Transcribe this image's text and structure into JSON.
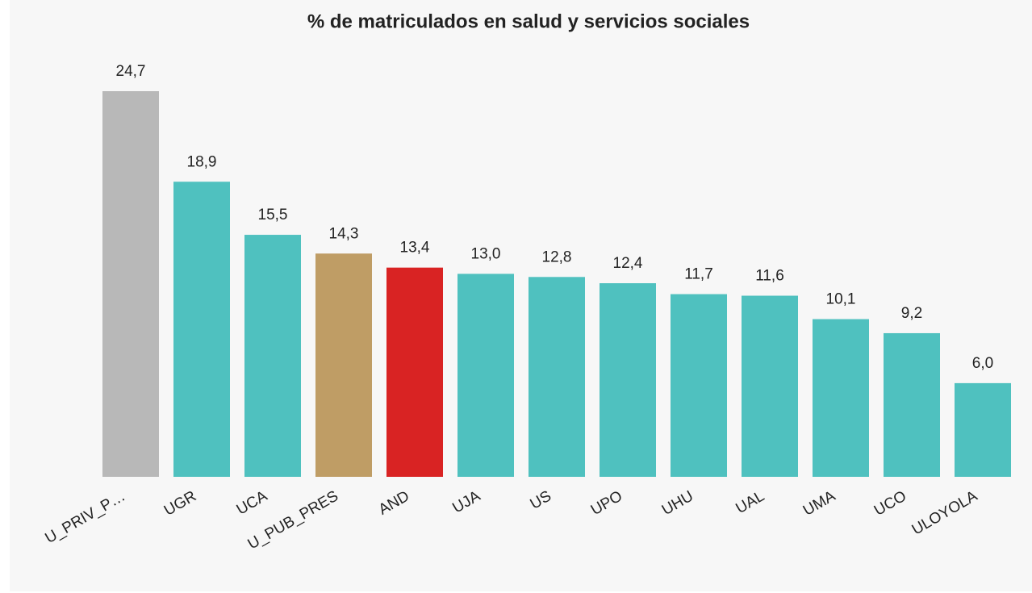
{
  "chart_data": {
    "type": "bar",
    "title": "% de matriculados en salud y servicios sociales",
    "categories": [
      "U_PRIV_P…",
      "UGR",
      "UCA",
      "U_PUB_PRES",
      "AND",
      "UJA",
      "US",
      "UPO",
      "UHU",
      "UAL",
      "UMA",
      "UCO",
      "ULOYOLA"
    ],
    "values": [
      24.7,
      18.9,
      15.5,
      14.3,
      13.4,
      13.0,
      12.8,
      12.4,
      11.7,
      11.6,
      10.1,
      9.2,
      6.0
    ],
    "value_labels": [
      "24,7",
      "18,9",
      "15,5",
      "14,3",
      "13,4",
      "13,0",
      "12,8",
      "12,4",
      "11,7",
      "11,6",
      "10,1",
      "9,2",
      "6,0"
    ],
    "colors": [
      "#b8b8b8",
      "#4fc1bf",
      "#4fc1bf",
      "#bf9d65",
      "#d92323",
      "#4fc1bf",
      "#4fc1bf",
      "#4fc1bf",
      "#4fc1bf",
      "#4fc1bf",
      "#4fc1bf",
      "#4fc1bf",
      "#4fc1bf"
    ]
  }
}
